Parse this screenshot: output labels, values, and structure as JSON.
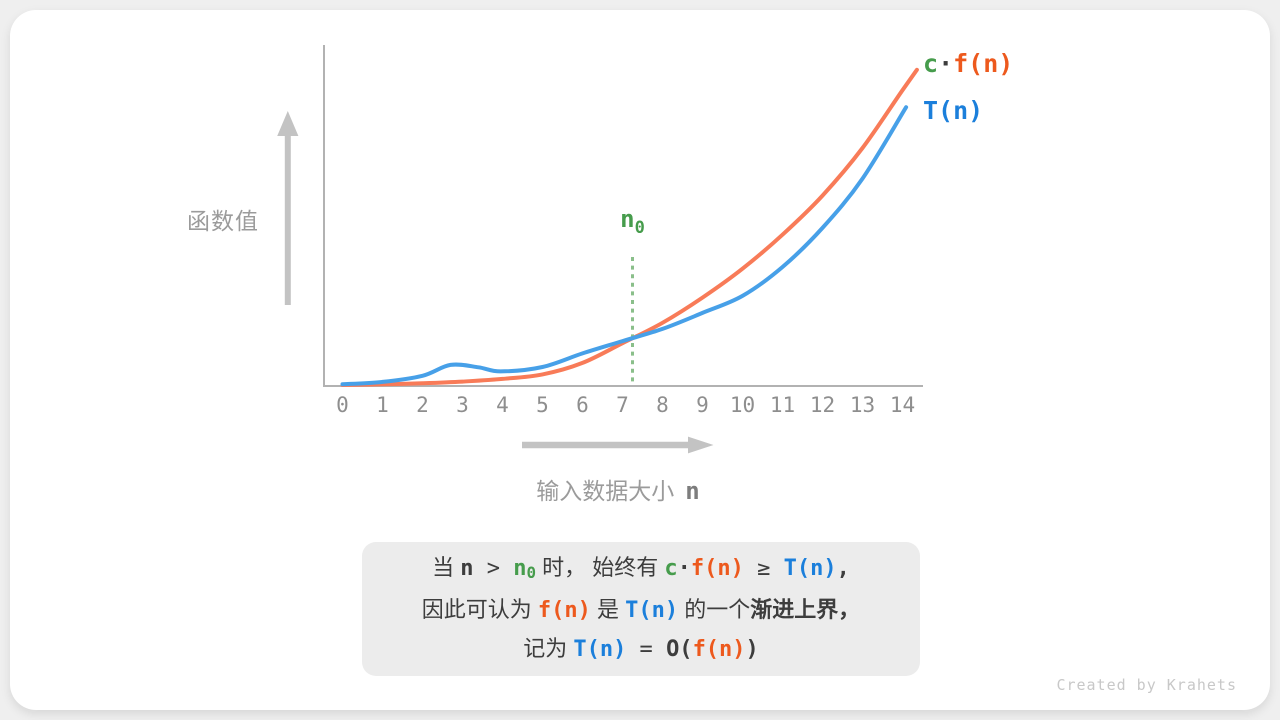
{
  "colors": {
    "page_bg": "#efefef",
    "card_bg": "#ffffff",
    "axis_gray": "#b2b2b2",
    "arrow_gray": "#c3c3c3",
    "label_gray": "#9b9b9b",
    "tick_gray": "#8e8e8e",
    "dark_text": "#3d3d3d",
    "green": "#469c4c",
    "green_dotted": "#8abf8a",
    "orange_curve": "#f87b58",
    "orange_text": "#ed591d",
    "blue_curve": "#47a0e8",
    "blue_text": "#1b7fdb",
    "note_bg": "#ececec",
    "footer_gray": "#c8c8c8",
    "x_var_gray": "#7d7d7d"
  },
  "chart": {
    "y_axis_label": "函数值",
    "x_label_cn": "输入数据大小",
    "x_label_var": "n",
    "n0_base": "n",
    "n0_sub": "0",
    "legend_lines": [
      [
        {
          "t": "c",
          "s": "green"
        },
        {
          "t": "·",
          "s": "var"
        },
        {
          "t": "f(n)",
          "s": "orange"
        }
      ],
      [
        {
          "t": "T(n)",
          "s": "blue"
        }
      ]
    ]
  },
  "chart_data": {
    "type": "line",
    "title": "",
    "xlabel": "输入数据大小 n",
    "ylabel": "函数值",
    "x_ticks": [
      "0",
      "1",
      "2",
      "3",
      "4",
      "5",
      "6",
      "7",
      "8",
      "9",
      "10",
      "11",
      "12",
      "13",
      "14"
    ],
    "xlim": [
      0,
      14.5
    ],
    "ylim": [
      0,
      100
    ],
    "grid": false,
    "legend_position": "top-right",
    "series": [
      {
        "name": "c·f(n)",
        "color_key": "orange_curve",
        "points": [
          [
            0,
            0.3
          ],
          [
            1,
            0.5
          ],
          [
            2,
            0.8
          ],
          [
            3,
            1.3
          ],
          [
            4,
            2.1
          ],
          [
            5,
            3.4
          ],
          [
            6,
            6.8
          ],
          [
            7,
            12.6
          ],
          [
            8,
            18.6
          ],
          [
            9,
            26
          ],
          [
            10,
            34.5
          ],
          [
            11,
            44.5
          ],
          [
            12,
            56
          ],
          [
            13,
            70
          ],
          [
            14,
            87
          ],
          [
            14.36,
            93
          ]
        ]
      },
      {
        "name": "T(n)",
        "color_key": "blue_curve",
        "points": [
          [
            0,
            0.5
          ],
          [
            1,
            1.2
          ],
          [
            2,
            3.0
          ],
          [
            2.7,
            6.2
          ],
          [
            3.4,
            5.5
          ],
          [
            3.95,
            4.3
          ],
          [
            5,
            5.6
          ],
          [
            6,
            9.6
          ],
          [
            7,
            13.2
          ],
          [
            8,
            16.8
          ],
          [
            9,
            21.5
          ],
          [
            10,
            26.5
          ],
          [
            11,
            35
          ],
          [
            12,
            46.5
          ],
          [
            13,
            61
          ],
          [
            14.09,
            82
          ]
        ]
      }
    ],
    "annotations": [
      {
        "type": "vline-dotted",
        "label": "n0",
        "x": 7.25,
        "color_key": "green_dotted"
      }
    ]
  },
  "note_box": {
    "lines": [
      [
        {
          "t": "当 ",
          "s": "cn"
        },
        {
          "t": "n",
          "s": "var"
        },
        {
          "t": " > ",
          "s": "dark"
        },
        {
          "t": "n",
          "s": "green"
        },
        {
          "t": "0",
          "s": "green-sub"
        },
        {
          "t": " 时， 始终有 ",
          "s": "cn"
        },
        {
          "t": "c",
          "s": "green"
        },
        {
          "t": "·",
          "s": "var"
        },
        {
          "t": "f(n)",
          "s": "orange"
        },
        {
          "t": " ≥ ",
          "s": "dark"
        },
        {
          "t": "T(n)",
          "s": "blue"
        },
        {
          "t": ",",
          "s": "var"
        }
      ],
      [
        {
          "t": "因此可认为 ",
          "s": "cn"
        },
        {
          "t": "f(n)",
          "s": "orange"
        },
        {
          "t": " 是 ",
          "s": "cn"
        },
        {
          "t": "T(n)",
          "s": "blue"
        },
        {
          "t": " 的一个",
          "s": "cn"
        },
        {
          "t": "渐进上界",
          "s": "cn-bold"
        },
        {
          "t": "，",
          "s": "cn-bold"
        }
      ],
      [
        {
          "t": "记为 ",
          "s": "cn"
        },
        {
          "t": "T(n)",
          "s": "blue"
        },
        {
          "t": " = ",
          "s": "dark"
        },
        {
          "t": "O(",
          "s": "var"
        },
        {
          "t": "f(n)",
          "s": "orange"
        },
        {
          "t": ")",
          "s": "var"
        }
      ]
    ]
  },
  "footer": "Created by Krahets"
}
